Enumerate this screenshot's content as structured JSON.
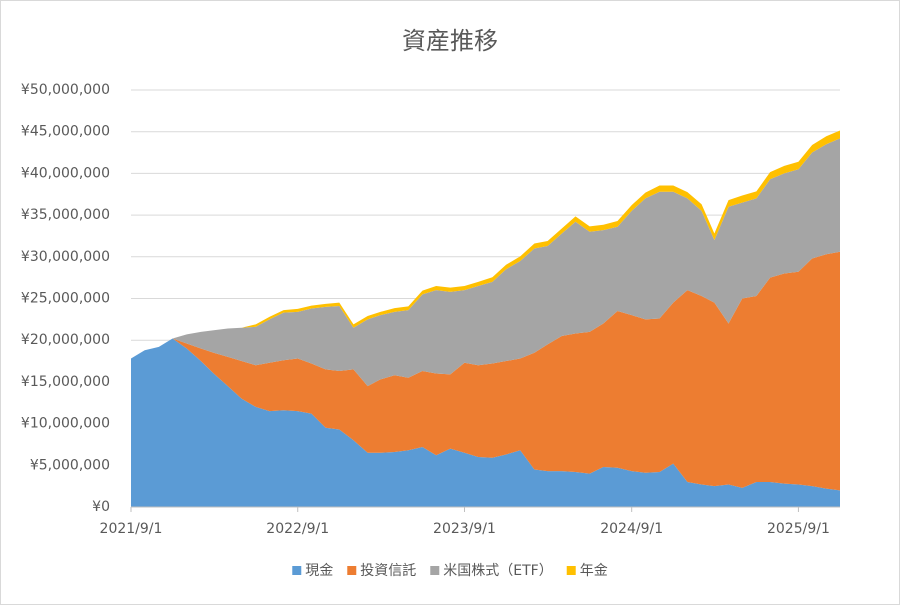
{
  "chart_data": {
    "type": "stacked_area",
    "title": "資産推移",
    "x": [
      "2021/9/1",
      "2021/10/1",
      "2021/11/1",
      "2021/12/1",
      "2022/1/1",
      "2022/2/1",
      "2022/3/1",
      "2022/4/1",
      "2022/5/1",
      "2022/6/1",
      "2022/7/1",
      "2022/8/1",
      "2022/9/1",
      "2022/10/1",
      "2022/11/1",
      "2022/12/1",
      "2023/1/1",
      "2023/2/1",
      "2023/3/1",
      "2023/4/1",
      "2023/5/1",
      "2023/6/1",
      "2023/7/1",
      "2023/8/1",
      "2023/9/1",
      "2023/10/1",
      "2023/11/1",
      "2023/12/1",
      "2024/1/1",
      "2024/2/1",
      "2024/3/1",
      "2024/4/1",
      "2024/5/1",
      "2024/6/1",
      "2024/7/1",
      "2024/8/1",
      "2024/9/1",
      "2024/10/1",
      "2024/11/1",
      "2024/12/1",
      "2025/1/1",
      "2025/2/1",
      "2025/3/1",
      "2025/4/1",
      "2025/5/1",
      "2025/6/1",
      "2025/7/1",
      "2025/8/1",
      "2025/9/1",
      "2025/10/1",
      "2025/11/1",
      "2025/12/1"
    ],
    "xlim": [
      "2021/9/1",
      "2025/12/1"
    ],
    "xticks": [
      "2021/9/1",
      "2022/9/1",
      "2023/9/1",
      "2024/9/1",
      "2025/9/1"
    ],
    "ylim": [
      0,
      50000000
    ],
    "yticks": [
      {
        "value": 0,
        "label": "¥0"
      },
      {
        "value": 5000000,
        "label": "¥5,000,000"
      },
      {
        "value": 10000000,
        "label": "¥10,000,000"
      },
      {
        "value": 15000000,
        "label": "¥15,000,000"
      },
      {
        "value": 20000000,
        "label": "¥20,000,000"
      },
      {
        "value": 25000000,
        "label": "¥25,000,000"
      },
      {
        "value": 30000000,
        "label": "¥30,000,000"
      },
      {
        "value": 35000000,
        "label": "¥35,000,000"
      },
      {
        "value": 40000000,
        "label": "¥40,000,000"
      },
      {
        "value": 45000000,
        "label": "¥45,000,000"
      },
      {
        "value": 50000000,
        "label": "¥50,000,000"
      }
    ],
    "grid": true,
    "legend": "bottom",
    "series": [
      {
        "name": "現金",
        "color": "#5b9bd5",
        "values": [
          17800000,
          18800000,
          19200000,
          20200000,
          19000000,
          17500000,
          16000000,
          14500000,
          13000000,
          12000000,
          11500000,
          11600000,
          11500000,
          11200000,
          9500000,
          9300000,
          8000000,
          6500000,
          6500000,
          6600000,
          6800000,
          7200000,
          6200000,
          7000000,
          6500000,
          6000000,
          5900000,
          6300000,
          6800000,
          4500000,
          4300000,
          4300000,
          4200000,
          4000000,
          4800000,
          4700000,
          4300000,
          4100000,
          4200000,
          5200000,
          3000000,
          2700000,
          2500000,
          2700000,
          2300000,
          3000000,
          3000000,
          2800000,
          2700000,
          2500000,
          2200000,
          2000000
        ]
      },
      {
        "name": "投資信託",
        "color": "#ed7d31",
        "values": [
          0,
          0,
          0,
          0,
          600000,
          1500000,
          2500000,
          3500000,
          4500000,
          5000000,
          5800000,
          6000000,
          6300000,
          6000000,
          7000000,
          7000000,
          8500000,
          8000000,
          8800000,
          9200000,
          8700000,
          9100000,
          9800000,
          8900000,
          10800000,
          11000000,
          11300000,
          11200000,
          11000000,
          14000000,
          15200000,
          16200000,
          16600000,
          17000000,
          17200000,
          18800000,
          18700000,
          18400000,
          18400000,
          19300000,
          23000000,
          22600000,
          22000000,
          19300000,
          22700000,
          22300000,
          24500000,
          25200000,
          25500000,
          27300000,
          28100000,
          28600000
        ]
      },
      {
        "name": "米国株式（ETF）",
        "color": "#a5a5a5",
        "values": [
          0,
          0,
          0,
          0,
          1100000,
          2000000,
          2700000,
          3400000,
          4000000,
          4600000,
          5200000,
          5700000,
          5600000,
          6600000,
          7500000,
          7800000,
          5000000,
          8000000,
          7700000,
          7600000,
          8100000,
          9200000,
          10000000,
          9900000,
          8700000,
          9500000,
          9800000,
          11000000,
          11700000,
          12500000,
          11800000,
          12300000,
          13400000,
          12000000,
          11200000,
          10100000,
          12500000,
          14500000,
          15200000,
          13300000,
          11000000,
          10200000,
          7500000,
          14000000,
          11500000,
          11700000,
          11800000,
          12000000,
          12300000,
          12700000,
          13200000,
          13600000
        ]
      },
      {
        "name": "年金",
        "color": "#ffc000",
        "values": [
          0,
          0,
          0,
          0,
          0,
          0,
          0,
          0,
          0,
          300000,
          300000,
          300000,
          350000,
          350000,
          350000,
          400000,
          400000,
          400000,
          400000,
          450000,
          450000,
          450000,
          500000,
          500000,
          500000,
          500000,
          550000,
          550000,
          550000,
          600000,
          600000,
          600000,
          650000,
          650000,
          650000,
          700000,
          700000,
          700000,
          750000,
          750000,
          750000,
          800000,
          800000,
          800000,
          850000,
          850000,
          850000,
          900000,
          900000,
          900000,
          950000,
          950000
        ]
      }
    ]
  }
}
